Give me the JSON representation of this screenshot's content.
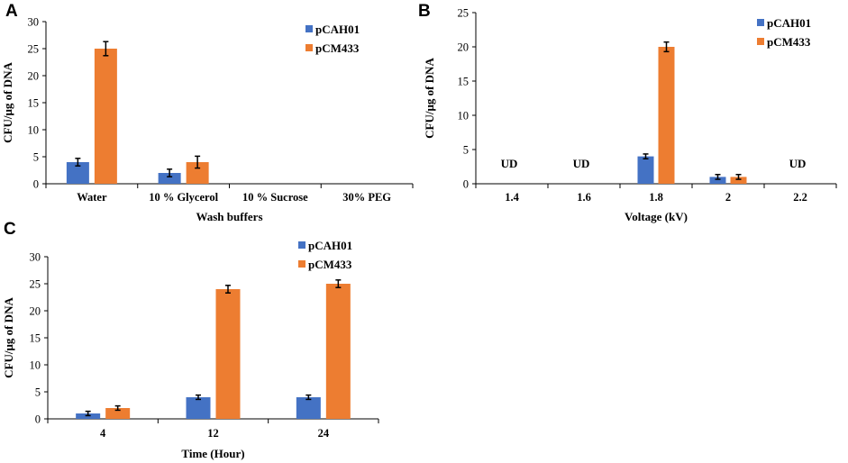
{
  "colors": {
    "series1": "#4472C4",
    "series2": "#ED7D31",
    "axis": "#000000"
  },
  "chart_data": [
    {
      "panel": "A",
      "type": "bar",
      "title": "",
      "xlabel": "Wash buffers",
      "ylabel": "CFU/μg of DNA",
      "ylim": [
        0,
        30
      ],
      "yticks": [
        0,
        5,
        10,
        15,
        20,
        25,
        30
      ],
      "categories": [
        "Water",
        "10 % Glycerol",
        "10 % Sucrose",
        "30% PEG"
      ],
      "series": [
        {
          "name": "pCAH01",
          "values": [
            4,
            2,
            0,
            0
          ],
          "errors": [
            0.7,
            0.7,
            0,
            0
          ]
        },
        {
          "name": "pCM433",
          "values": [
            25,
            4,
            0,
            0
          ],
          "errors": [
            1.3,
            1.1,
            0,
            0
          ]
        }
      ],
      "annotations": [],
      "legend": "top-right"
    },
    {
      "panel": "B",
      "type": "bar",
      "title": "",
      "xlabel": "Voltage (kV)",
      "ylabel": "CFU/μg of DNA",
      "ylim": [
        0,
        25
      ],
      "yticks": [
        0,
        5,
        10,
        15,
        20,
        25
      ],
      "categories": [
        "1.4",
        "1.6",
        "1.8",
        "2",
        "2.2"
      ],
      "series": [
        {
          "name": "pCAH01",
          "values": [
            0,
            0,
            4,
            1,
            0
          ],
          "errors": [
            0,
            0,
            0.35,
            0.35,
            0
          ]
        },
        {
          "name": "pCM433",
          "values": [
            0,
            0,
            20,
            1,
            0
          ],
          "errors": [
            0,
            0,
            0.7,
            0.35,
            0
          ]
        }
      ],
      "annotations": [
        {
          "category": "1.4",
          "text": "UD"
        },
        {
          "category": "1.6",
          "text": "UD"
        },
        {
          "category": "2.2",
          "text": "UD"
        }
      ],
      "legend": "top-right"
    },
    {
      "panel": "C",
      "type": "bar",
      "title": "",
      "xlabel": "Time (Hour)",
      "ylabel": "CFU/μg of DNA",
      "ylim": [
        0,
        30
      ],
      "yticks": [
        0,
        5,
        10,
        15,
        20,
        25,
        30
      ],
      "categories": [
        "4",
        "12",
        "24"
      ],
      "series": [
        {
          "name": "pCAH01",
          "values": [
            1,
            4,
            4
          ],
          "errors": [
            0.4,
            0.4,
            0.4
          ]
        },
        {
          "name": "pCM433",
          "values": [
            2,
            24,
            25
          ],
          "errors": [
            0.4,
            0.7,
            0.7
          ]
        }
      ],
      "annotations": [],
      "legend": "top-right"
    }
  ]
}
